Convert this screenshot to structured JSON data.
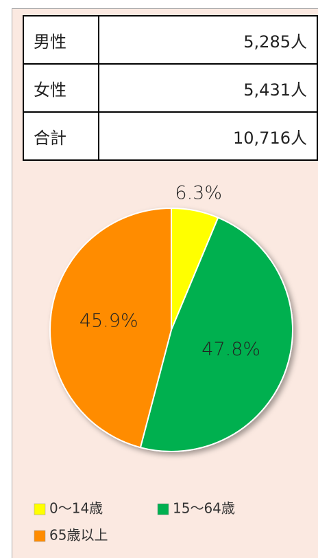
{
  "table": {
    "rows": [
      [
        "男性",
        "5,285人"
      ],
      [
        "女性",
        "5,431人"
      ],
      [
        "合計",
        "10,716人"
      ]
    ]
  },
  "chart_data": {
    "type": "pie",
    "categories": [
      "0～14歳",
      "15～64歳",
      "65歳以上"
    ],
    "values": [
      6.3,
      47.8,
      45.9
    ],
    "value_labels": [
      "6.3%",
      "47.8%",
      "45.9%"
    ],
    "colors": [
      "#ffff00",
      "#00b050",
      "#ff8c00"
    ],
    "legend": "bottom"
  }
}
